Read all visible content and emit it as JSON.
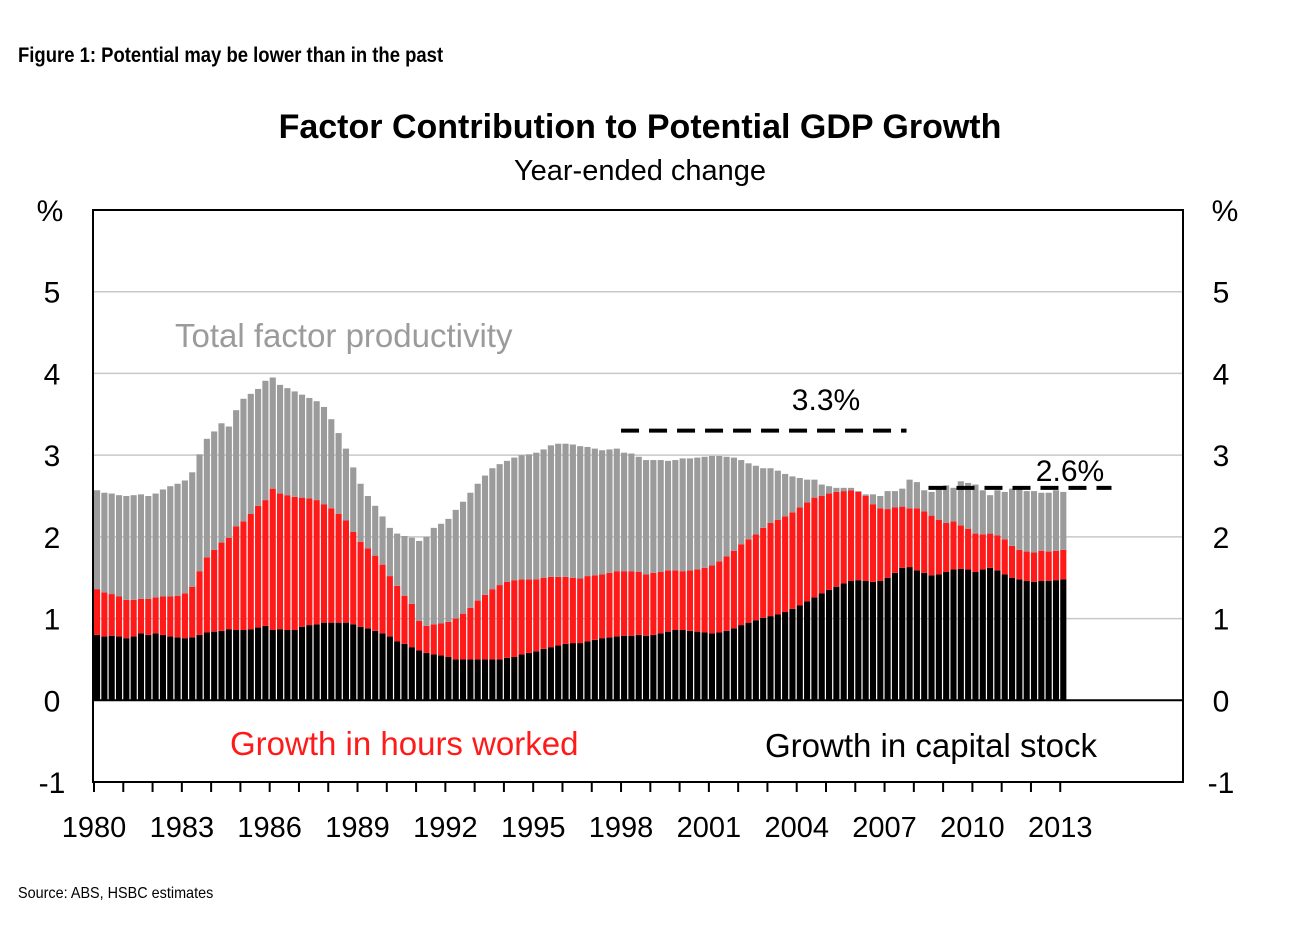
{
  "figure_label": "Figure 1: Potential may be lower than in the past",
  "source": "Source: ABS, HSBC estimates",
  "chart_data": {
    "type": "bar",
    "stacked": true,
    "title": "Factor Contribution to Potential GDP Growth",
    "subtitle": "Year-ended change",
    "ylabel_left": "%",
    "ylabel_right": "%",
    "ylim": [
      -1,
      6
    ],
    "y_ticks": [
      "-1",
      "0",
      "1",
      "2",
      "3",
      "4",
      "5"
    ],
    "x_tick_labels": [
      "1980",
      "1983",
      "1986",
      "1989",
      "1992",
      "1995",
      "1998",
      "2001",
      "2004",
      "2007",
      "2010",
      "2013"
    ],
    "x_start": 1980,
    "periods_per_year": 4,
    "grid": true,
    "colors": {
      "capital": "#000000",
      "hours": "#ff1a1a",
      "tfp": "#9b9b9b",
      "reference": "#000000"
    },
    "series": [
      {
        "name": "Growth in capital stock",
        "values": [
          0.8,
          0.78,
          0.79,
          0.78,
          0.76,
          0.78,
          0.82,
          0.8,
          0.82,
          0.8,
          0.78,
          0.77,
          0.76,
          0.77,
          0.8,
          0.83,
          0.84,
          0.85,
          0.87,
          0.86,
          0.86,
          0.87,
          0.89,
          0.91,
          0.86,
          0.87,
          0.86,
          0.86,
          0.9,
          0.92,
          0.93,
          0.95,
          0.95,
          0.95,
          0.95,
          0.93,
          0.9,
          0.88,
          0.85,
          0.82,
          0.78,
          0.72,
          0.69,
          0.65,
          0.61,
          0.58,
          0.56,
          0.55,
          0.53,
          0.5,
          0.5,
          0.5,
          0.5,
          0.5,
          0.5,
          0.5,
          0.52,
          0.53,
          0.56,
          0.58,
          0.6,
          0.63,
          0.65,
          0.67,
          0.69,
          0.7,
          0.7,
          0.72,
          0.74,
          0.76,
          0.77,
          0.78,
          0.79,
          0.79,
          0.8,
          0.79,
          0.8,
          0.82,
          0.84,
          0.86,
          0.86,
          0.85,
          0.84,
          0.83,
          0.82,
          0.83,
          0.85,
          0.88,
          0.92,
          0.95,
          0.98,
          1.01,
          1.03,
          1.05,
          1.08,
          1.12,
          1.16,
          1.21,
          1.26,
          1.31,
          1.35,
          1.39,
          1.43,
          1.46,
          1.47,
          1.46,
          1.45,
          1.46,
          1.5,
          1.56,
          1.62,
          1.63,
          1.59,
          1.56,
          1.53,
          1.54,
          1.57,
          1.6,
          1.61,
          1.6,
          1.57,
          1.6,
          1.62,
          1.59,
          1.54,
          1.5,
          1.48,
          1.46,
          1.45,
          1.46,
          1.46,
          1.47,
          1.48
        ]
      },
      {
        "name": "Growth in hours worked",
        "values": [
          0.56,
          0.54,
          0.51,
          0.49,
          0.47,
          0.45,
          0.42,
          0.44,
          0.44,
          0.47,
          0.49,
          0.51,
          0.55,
          0.62,
          0.78,
          0.92,
          1.0,
          1.08,
          1.12,
          1.27,
          1.33,
          1.41,
          1.49,
          1.54,
          1.73,
          1.66,
          1.65,
          1.63,
          1.58,
          1.55,
          1.52,
          1.45,
          1.4,
          1.33,
          1.25,
          1.13,
          1.04,
          0.98,
          0.92,
          0.84,
          0.74,
          0.68,
          0.59,
          0.53,
          0.36,
          0.33,
          0.37,
          0.39,
          0.43,
          0.5,
          0.56,
          0.63,
          0.72,
          0.79,
          0.86,
          0.91,
          0.93,
          0.94,
          0.92,
          0.9,
          0.88,
          0.87,
          0.86,
          0.84,
          0.82,
          0.8,
          0.79,
          0.8,
          0.79,
          0.78,
          0.79,
          0.8,
          0.79,
          0.79,
          0.77,
          0.75,
          0.76,
          0.75,
          0.75,
          0.73,
          0.72,
          0.74,
          0.76,
          0.79,
          0.83,
          0.87,
          0.91,
          0.95,
          0.99,
          1.02,
          1.05,
          1.1,
          1.14,
          1.16,
          1.17,
          1.18,
          1.2,
          1.21,
          1.22,
          1.19,
          1.18,
          1.16,
          1.13,
          1.11,
          1.08,
          1.04,
          0.95,
          0.89,
          0.84,
          0.8,
          0.75,
          0.72,
          0.76,
          0.75,
          0.73,
          0.67,
          0.6,
          0.59,
          0.53,
          0.5,
          0.47,
          0.43,
          0.42,
          0.43,
          0.43,
          0.39,
          0.36,
          0.36,
          0.36,
          0.37,
          0.36,
          0.36,
          0.36
        ]
      },
      {
        "name": "Total factor productivity",
        "values": [
          1.21,
          1.22,
          1.23,
          1.24,
          1.27,
          1.28,
          1.28,
          1.26,
          1.27,
          1.31,
          1.35,
          1.37,
          1.38,
          1.4,
          1.43,
          1.45,
          1.45,
          1.46,
          1.36,
          1.42,
          1.5,
          1.47,
          1.43,
          1.46,
          1.36,
          1.33,
          1.31,
          1.29,
          1.26,
          1.23,
          1.21,
          1.19,
          1.09,
          0.99,
          0.88,
          0.79,
          0.71,
          0.64,
          0.61,
          0.59,
          0.59,
          0.64,
          0.73,
          0.81,
          0.98,
          1.09,
          1.18,
          1.22,
          1.26,
          1.33,
          1.37,
          1.41,
          1.43,
          1.46,
          1.48,
          1.48,
          1.48,
          1.5,
          1.52,
          1.53,
          1.55,
          1.57,
          1.61,
          1.63,
          1.63,
          1.63,
          1.62,
          1.58,
          1.55,
          1.52,
          1.51,
          1.5,
          1.45,
          1.44,
          1.41,
          1.4,
          1.38,
          1.37,
          1.34,
          1.35,
          1.38,
          1.37,
          1.37,
          1.36,
          1.34,
          1.29,
          1.22,
          1.14,
          1.03,
          0.93,
          0.84,
          0.73,
          0.67,
          0.6,
          0.52,
          0.44,
          0.36,
          0.28,
          0.22,
          0.14,
          0.09,
          0.05,
          0.04,
          0.03,
          0.01,
          0.02,
          0.12,
          0.15,
          0.22,
          0.2,
          0.22,
          0.35,
          0.32,
          0.26,
          0.29,
          0.41,
          0.46,
          0.41,
          0.54,
          0.56,
          0.6,
          0.54,
          0.47,
          0.55,
          0.58,
          0.7,
          0.77,
          0.74,
          0.75,
          0.71,
          0.72,
          0.74,
          0.71
        ]
      }
    ],
    "reference_lines": [
      {
        "label": "3.3%",
        "value": 3.3,
        "x_from": 1998.0,
        "x_to": 2007.75
      },
      {
        "label": "2.6%",
        "value": 2.6,
        "x_from": 2008.5,
        "x_to": 2014.75
      }
    ],
    "annotations": [
      {
        "text": "Total factor productivity",
        "color": "#9b9b9b"
      },
      {
        "text": "Growth in hours worked",
        "color": "#ff1a1a"
      },
      {
        "text": "Growth in capital stock",
        "color": "#000000"
      }
    ]
  }
}
